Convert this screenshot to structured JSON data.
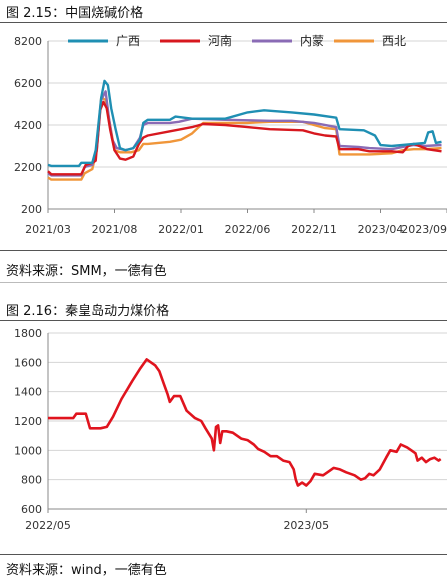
{
  "charts": [
    {
      "caption": "图 2.15：中国烧碱价格",
      "source": "资料来源：SMM，一德有色",
      "chart_data": {
        "type": "line",
        "title": "",
        "xlabel": "",
        "ylabel": "",
        "ylim": [
          200,
          8200
        ],
        "yticks": [
          200,
          2200,
          4200,
          6200,
          8200
        ],
        "xticks": [
          "2021/03",
          "2021/08",
          "2022/01",
          "2022/06",
          "2022/11",
          "2023/04",
          "2023/09"
        ],
        "grid": "horizontal",
        "legend_position": "top",
        "series": [
          {
            "name": "广西",
            "color": "#1f8fb3",
            "points": [
              [
                0,
                2300
              ],
              [
                0.3,
                2250
              ],
              [
                2.8,
                2250
              ],
              [
                3,
                2400
              ],
              [
                4,
                2400
              ],
              [
                4.3,
                3000
              ],
              [
                4.8,
                5500
              ],
              [
                5.1,
                6300
              ],
              [
                5.4,
                6100
              ],
              [
                5.7,
                5000
              ],
              [
                6.1,
                4000
              ],
              [
                6.5,
                3100
              ],
              [
                7,
                3000
              ],
              [
                7.7,
                3100
              ],
              [
                8.3,
                3500
              ],
              [
                8.6,
                4300
              ],
              [
                9,
                4450
              ],
              [
                11,
                4450
              ],
              [
                11.5,
                4600
              ],
              [
                13,
                4500
              ],
              [
                16,
                4500
              ],
              [
                18,
                4800
              ],
              [
                19.5,
                4900
              ],
              [
                22,
                4800
              ],
              [
                24,
                4700
              ],
              [
                26,
                4550
              ],
              [
                26.3,
                4000
              ],
              [
                28.5,
                3950
              ],
              [
                29.5,
                3700
              ],
              [
                30,
                3250
              ],
              [
                31,
                3200
              ],
              [
                34,
                3350
              ],
              [
                34.3,
                3850
              ],
              [
                34.7,
                3900
              ],
              [
                35,
                3350
              ],
              [
                35.5,
                3400
              ]
            ]
          },
          {
            "name": "河南",
            "color": "#d7181f",
            "points": [
              [
                0,
                2000
              ],
              [
                0.3,
                1850
              ],
              [
                3,
                1850
              ],
              [
                3.4,
                2300
              ],
              [
                4,
                2400
              ],
              [
                4.3,
                2500
              ],
              [
                4.7,
                4900
              ],
              [
                5,
                5300
              ],
              [
                5.3,
                5000
              ],
              [
                5.6,
                4000
              ],
              [
                6,
                3000
              ],
              [
                6.5,
                2600
              ],
              [
                7,
                2550
              ],
              [
                7.7,
                2700
              ],
              [
                8.2,
                3300
              ],
              [
                8.6,
                3600
              ],
              [
                9,
                3700
              ],
              [
                11,
                3900
              ],
              [
                13,
                4100
              ],
              [
                14,
                4250
              ],
              [
                16,
                4200
              ],
              [
                18,
                4100
              ],
              [
                20,
                4000
              ],
              [
                23,
                3950
              ],
              [
                24,
                3800
              ],
              [
                25,
                3700
              ],
              [
                26,
                3650
              ],
              [
                26.3,
                3050
              ],
              [
                28,
                3050
              ],
              [
                29,
                2950
              ],
              [
                31,
                2950
              ],
              [
                32,
                2900
              ],
              [
                32.5,
                3200
              ],
              [
                33,
                3300
              ],
              [
                34,
                3100
              ],
              [
                34.2,
                3050
              ],
              [
                35.5,
                2950
              ]
            ]
          },
          {
            "name": "内蒙",
            "color": "#8a6bb5",
            "points": [
              [
                0,
                1900
              ],
              [
                0.3,
                1800
              ],
              [
                3,
                1800
              ],
              [
                3.3,
                2200
              ],
              [
                4,
                2300
              ],
              [
                4.4,
                3000
              ],
              [
                4.8,
                5400
              ],
              [
                5.2,
                5800
              ],
              [
                5.5,
                4500
              ],
              [
                5.8,
                3500
              ],
              [
                6.2,
                3100
              ],
              [
                7,
                3000
              ],
              [
                7.7,
                3100
              ],
              [
                8.3,
                3600
              ],
              [
                8.6,
                4200
              ],
              [
                9,
                4300
              ],
              [
                11,
                4300
              ],
              [
                11.8,
                4350
              ],
              [
                13,
                4500
              ],
              [
                16,
                4450
              ],
              [
                20,
                4400
              ],
              [
                22,
                4400
              ],
              [
                24,
                4300
              ],
              [
                26,
                4100
              ],
              [
                26.3,
                3200
              ],
              [
                28,
                3150
              ],
              [
                29,
                3100
              ],
              [
                31,
                3050
              ],
              [
                32,
                3150
              ],
              [
                33,
                3250
              ],
              [
                34,
                3200
              ],
              [
                35.5,
                3250
              ]
            ]
          },
          {
            "name": "西北",
            "color": "#f0963a",
            "points": [
              [
                0,
                1700
              ],
              [
                0.3,
                1600
              ],
              [
                3,
                1600
              ],
              [
                3.3,
                1900
              ],
              [
                4,
                2100
              ],
              [
                4.4,
                3000
              ],
              [
                4.8,
                5500
              ],
              [
                5.2,
                5400
              ],
              [
                5.6,
                4200
              ],
              [
                6,
                3000
              ],
              [
                6.5,
                2900
              ],
              [
                7.5,
                2900
              ],
              [
                8.2,
                3000
              ],
              [
                8.6,
                3300
              ],
              [
                9,
                3300
              ],
              [
                11,
                3400
              ],
              [
                12,
                3500
              ],
              [
                13,
                3800
              ],
              [
                14,
                4300
              ],
              [
                16,
                4300
              ],
              [
                18,
                4300
              ],
              [
                20,
                4350
              ],
              [
                23,
                4350
              ],
              [
                25,
                4050
              ],
              [
                26,
                4000
              ],
              [
                26.3,
                2800
              ],
              [
                28,
                2800
              ],
              [
                29,
                2800
              ],
              [
                31,
                2850
              ],
              [
                32,
                3000
              ],
              [
                33,
                3050
              ],
              [
                34,
                3050
              ],
              [
                35.5,
                3100
              ]
            ]
          }
        ]
      }
    },
    {
      "caption": "图 2.16：秦皇岛动力煤价格",
      "source": "资料来源：wind，一德有色",
      "chart_data": {
        "type": "line",
        "title": "",
        "xlabel": "",
        "ylabel": "",
        "ylim": [
          600,
          1800
        ],
        "yticks": [
          600,
          800,
          1000,
          1200,
          1400,
          1600,
          1800
        ],
        "xticks": [
          "2022/05",
          "2023/05"
        ],
        "grid": "horizontal",
        "legend_position": "none",
        "series": [
          {
            "name": "",
            "color": "#e0141e",
            "points": [
              [
                0,
                1220
              ],
              [
                0.2,
                1220
              ],
              [
                1.2,
                1220
              ],
              [
                1.35,
                1250
              ],
              [
                1.8,
                1250
              ],
              [
                2,
                1150
              ],
              [
                2.5,
                1150
              ],
              [
                2.8,
                1160
              ],
              [
                3.1,
                1230
              ],
              [
                3.5,
                1350
              ],
              [
                4,
                1470
              ],
              [
                4.4,
                1560
              ],
              [
                4.7,
                1620
              ],
              [
                5.1,
                1580
              ],
              [
                5.3,
                1540
              ],
              [
                5.5,
                1460
              ],
              [
                5.7,
                1380
              ],
              [
                5.8,
                1330
              ],
              [
                6,
                1370
              ],
              [
                6.3,
                1370
              ],
              [
                6.6,
                1270
              ],
              [
                7,
                1220
              ],
              [
                7.3,
                1200
              ],
              [
                7.5,
                1150
              ],
              [
                7.8,
                1080
              ],
              [
                7.9,
                1000
              ],
              [
                8,
                1160
              ],
              [
                8.1,
                1170
              ],
              [
                8.2,
                1050
              ],
              [
                8.3,
                1130
              ],
              [
                8.5,
                1130
              ],
              [
                8.8,
                1120
              ],
              [
                9.2,
                1080
              ],
              [
                9.5,
                1070
              ],
              [
                9.8,
                1040
              ],
              [
                10,
                1010
              ],
              [
                10.3,
                990
              ],
              [
                10.6,
                960
              ],
              [
                10.9,
                960
              ],
              [
                11.2,
                930
              ],
              [
                11.5,
                920
              ],
              [
                11.7,
                870
              ],
              [
                11.8,
                800
              ],
              [
                11.9,
                760
              ],
              [
                12.1,
                780
              ],
              [
                12.3,
                760
              ],
              [
                12.5,
                790
              ],
              [
                12.7,
                840
              ],
              [
                13.1,
                830
              ],
              [
                13.4,
                860
              ],
              [
                13.6,
                880
              ],
              [
                13.9,
                870
              ],
              [
                14.2,
                850
              ],
              [
                14.6,
                830
              ],
              [
                14.9,
                800
              ],
              [
                15.1,
                810
              ],
              [
                15.3,
                840
              ],
              [
                15.5,
                830
              ],
              [
                15.8,
                870
              ],
              [
                16.1,
                950
              ],
              [
                16.3,
                1000
              ],
              [
                16.6,
                990
              ],
              [
                16.8,
                1040
              ],
              [
                17.1,
                1020
              ],
              [
                17.3,
                1000
              ],
              [
                17.5,
                980
              ],
              [
                17.6,
                930
              ],
              [
                17.8,
                950
              ],
              [
                18,
                920
              ],
              [
                18.2,
                940
              ],
              [
                18.4,
                950
              ],
              [
                18.6,
                930
              ],
              [
                18.7,
                940
              ]
            ]
          }
        ]
      }
    }
  ]
}
